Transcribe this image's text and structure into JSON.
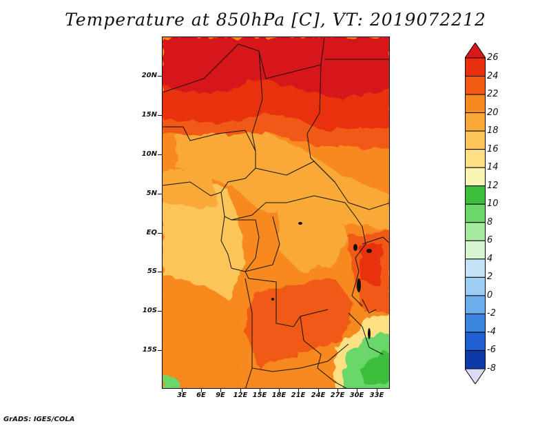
{
  "title": "Temperature at 850hPa [C], VT: 2019072212",
  "footer": "GrADS: IGES/COLA",
  "map": {
    "lat_labels": [
      "20N",
      "15N",
      "10N",
      "5N",
      "EQ",
      "5S",
      "10S",
      "15S"
    ],
    "lon_labels": [
      "3E",
      "6E",
      "9E",
      "12E",
      "15E",
      "18E",
      "21E",
      "24E",
      "27E",
      "30E",
      "33E"
    ]
  },
  "colorbar": {
    "levels": [
      "26",
      "24",
      "22",
      "20",
      "18",
      "16",
      "14",
      "12",
      "10",
      "8",
      "6",
      "4",
      "2",
      "0",
      "-2",
      "-4",
      "-6",
      "-8"
    ],
    "colors": [
      "#d7191c",
      "#e8300e",
      "#f05a13",
      "#f7891e",
      "#f9a937",
      "#fbc55a",
      "#fde083",
      "#fbf4b4",
      "#3cbf3c",
      "#6bd76b",
      "#a5ea9e",
      "#d8f5d2",
      "#c6e3f7",
      "#9dcdf2",
      "#6aaeeb",
      "#3d86e0",
      "#1f5fcf",
      "#0c3aa8",
      "#07207c"
    ],
    "under_color": "#dcdcf6",
    "over_color": "#c01010"
  }
}
